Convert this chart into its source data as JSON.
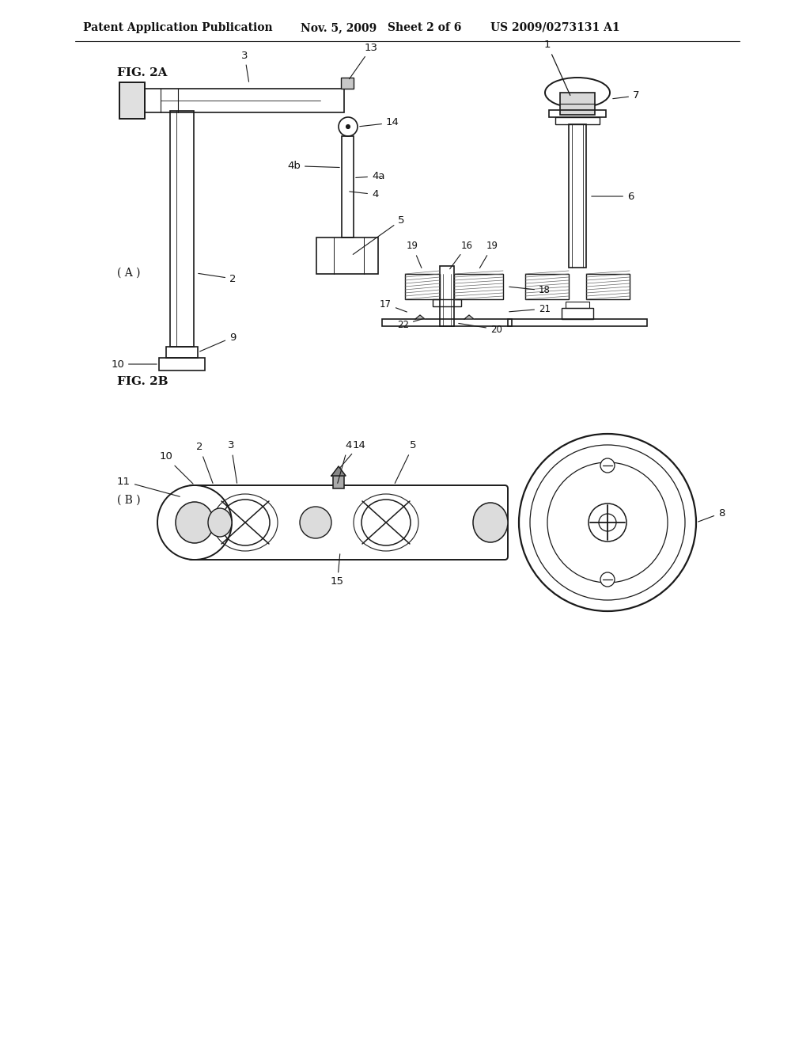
{
  "bg_color": "#ffffff",
  "header_text": "Patent Application Publication",
  "header_date": "Nov. 5, 2009",
  "header_sheet": "Sheet 2 of 6",
  "header_patent": "US 2009/0273131 A1",
  "fig2a_label": "FIG. 2A",
  "fig2b_label": "FIG. 2B",
  "label_A": "( A )",
  "label_B": "( B )",
  "line_color": "#1a1a1a",
  "hatch_color": "#555555",
  "text_color": "#111111"
}
